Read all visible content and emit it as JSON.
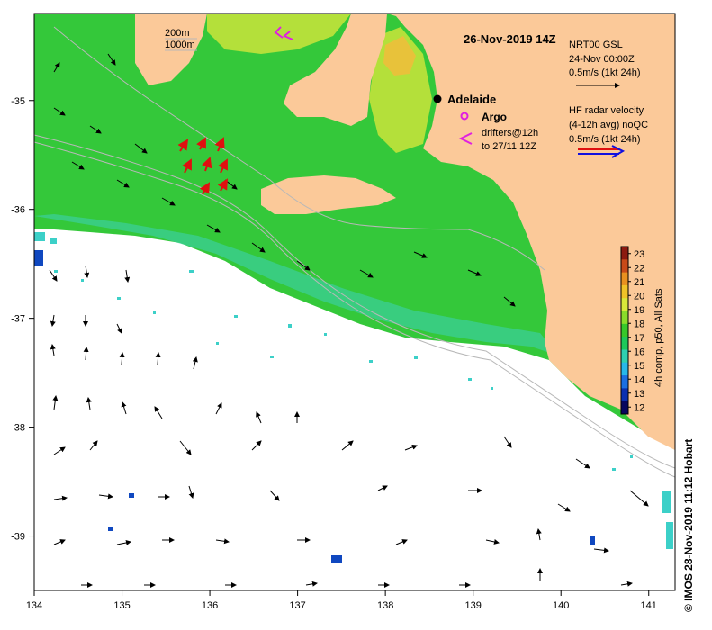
{
  "title": "26-Nov-2019 14Z",
  "credit": "© IMOS 28-Nov-2019 11:12 Hobart",
  "axes": {
    "x_ticks": [
      "134",
      "135",
      "136",
      "137",
      "138",
      "139",
      "140",
      "141"
    ],
    "y_ticks": [
      "-35",
      "-36",
      "-37",
      "-38",
      "-39"
    ],
    "lon_range": [
      134,
      141.3
    ],
    "lat_range": [
      -39.5,
      -34.2
    ]
  },
  "isobaths": {
    "label_200": "200m",
    "label_1000": "1000m"
  },
  "legend": {
    "gsl_title": "NRT00 GSL",
    "gsl_date": "24-Nov 00:00Z",
    "gsl_scale": "0.5m/s (1kt 24h)",
    "hf_title": "HF radar velocity",
    "hf_sub": "(4-12h avg) noQC",
    "hf_scale": "0.5m/s (1kt 24h)",
    "adelaide": "Adelaide",
    "argo": "Argo",
    "drifters_line1": "drifters@12h",
    "drifters_line2": "to 27/11 12Z"
  },
  "colorbar": {
    "label": "4h comp, p50, All Sats",
    "ticks": [
      "23",
      "22",
      "21",
      "20",
      "19",
      "18",
      "17",
      "16",
      "15",
      "14",
      "13",
      "12"
    ],
    "range": [
      12,
      23
    ],
    "colors": [
      "#08065e",
      "#0a2fb0",
      "#1c6fe0",
      "#28b8e8",
      "#2ed0b0",
      "#1ec85a",
      "#38c82a",
      "#8adc2a",
      "#d8e83a",
      "#f0c228",
      "#e89020",
      "#c84a18",
      "#8c1a10"
    ]
  },
  "colors": {
    "land": "#fbc999",
    "sst_main": "#34c83a",
    "sst_warm": "#b4e03a",
    "sst_cool": "#3ccf9c",
    "argo": "#e020e0",
    "drifter": "#e01010",
    "hf_red": "#e01010",
    "hf_blue": "#1010e0"
  }
}
